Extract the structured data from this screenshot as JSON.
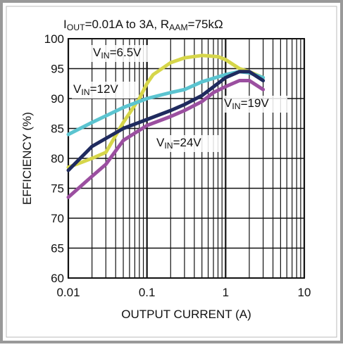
{
  "chart_data": {
    "type": "line",
    "title": [
      "I",
      "OUT",
      "=0.01A to 3A, R",
      "AAM",
      "=75kΩ"
    ],
    "xlabel": "OUTPUT CURRENT (A)",
    "ylabel": "EFFICIENCY (%)",
    "xscale": "log",
    "xlim": [
      0.01,
      10
    ],
    "xticks": [
      0.01,
      0.1,
      1,
      10
    ],
    "ylim": [
      60,
      100
    ],
    "yticks": [
      60,
      65,
      70,
      75,
      80,
      85,
      90,
      95,
      100
    ],
    "grid": true,
    "minor_grid": true,
    "series": [
      {
        "name": [
          "V",
          "IN",
          "=6.5V"
        ],
        "color": "#d6d64a",
        "x": [
          0.01,
          0.02,
          0.03,
          0.05,
          0.08,
          0.1,
          0.12,
          0.2,
          0.3,
          0.5,
          0.8,
          1,
          1.5,
          2,
          3
        ],
        "values": [
          78.5,
          80,
          81,
          86,
          90,
          92.5,
          94,
          96,
          96.8,
          97.2,
          97,
          96.5,
          95,
          94.5,
          93.5
        ]
      },
      {
        "name": [
          "V",
          "IN",
          "=12V"
        ],
        "color": "#5bc4d0",
        "x": [
          0.01,
          0.02,
          0.05,
          0.1,
          0.2,
          0.3,
          0.5,
          1,
          1.5,
          2,
          3
        ],
        "values": [
          84,
          86,
          88.5,
          90,
          91,
          91.5,
          92.8,
          94,
          94.5,
          94.3,
          93.5
        ]
      },
      {
        "name": [
          "V",
          "IN",
          "=19V"
        ],
        "color": "#1f2a5e",
        "x": [
          0.01,
          0.02,
          0.05,
          0.1,
          0.2,
          0.3,
          0.5,
          1,
          1.5,
          2,
          3
        ],
        "values": [
          78,
          82,
          85,
          86.5,
          88,
          89,
          90.5,
          93.5,
          94.5,
          94.5,
          93
        ]
      },
      {
        "name": [
          "V",
          "IN",
          "=24V"
        ],
        "color": "#9b4fa0",
        "x": [
          0.01,
          0.02,
          0.03,
          0.05,
          0.1,
          0.2,
          0.3,
          0.5,
          0.7,
          1,
          1.5,
          2,
          3
        ],
        "values": [
          73.5,
          77,
          79,
          83,
          85.5,
          87,
          88,
          89.5,
          91,
          92,
          93,
          93,
          91.5
        ]
      }
    ]
  }
}
